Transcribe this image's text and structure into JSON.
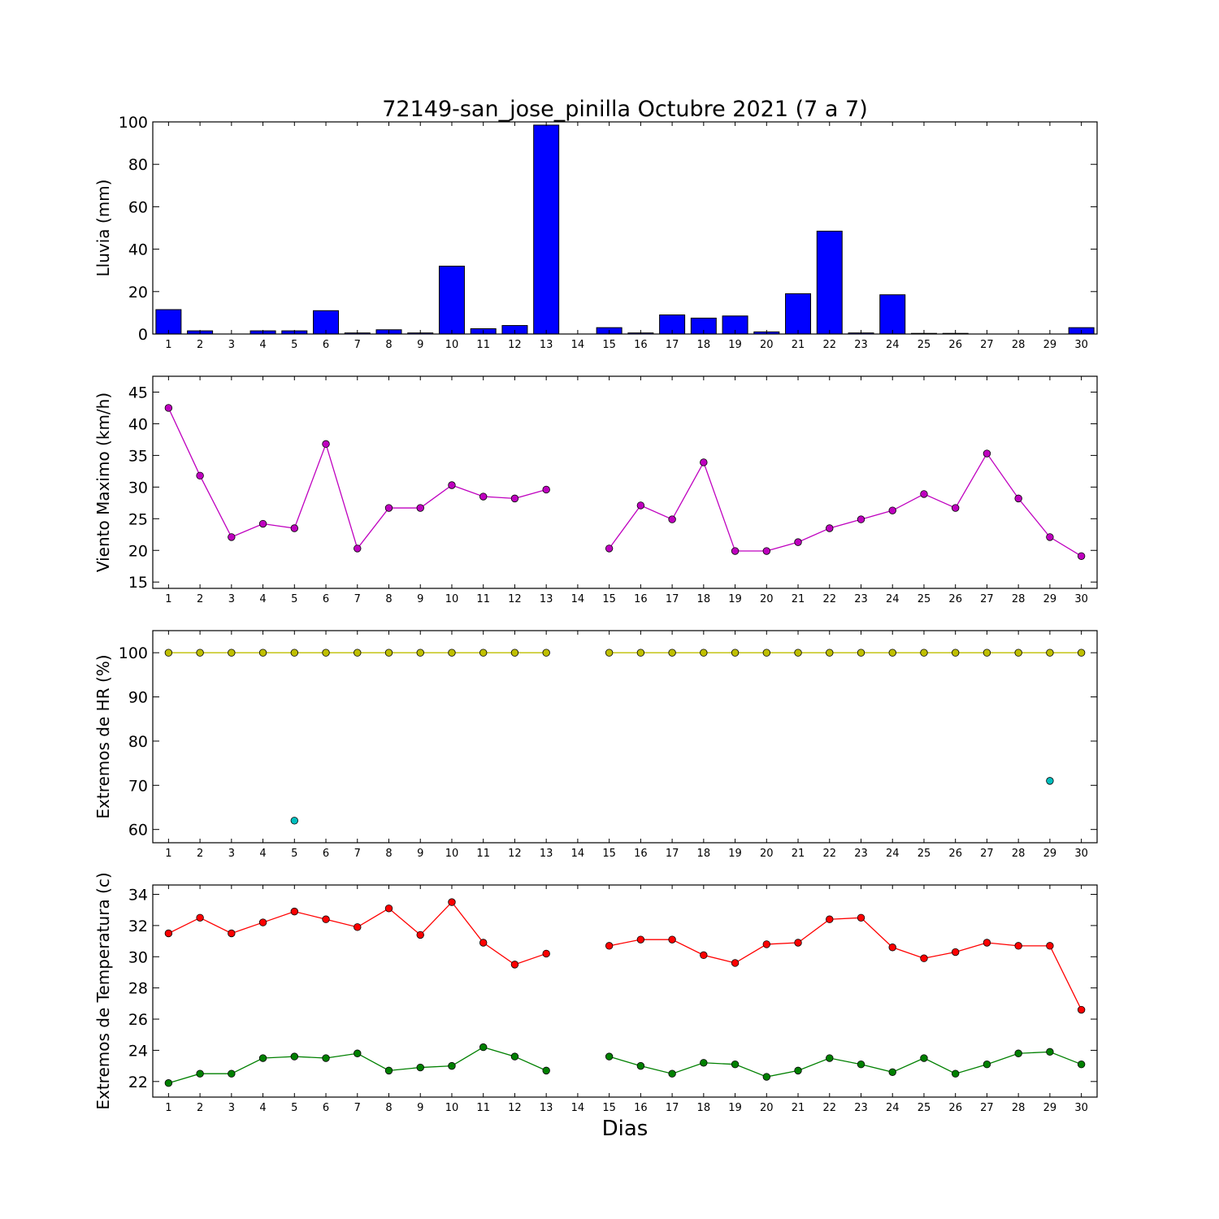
{
  "title": "72149-san_jose_pinilla Octubre 2021  (7 a 7)",
  "xlabel": "Dias",
  "chart_data": [
    {
      "type": "bar",
      "ylabel": "Lluvia (mm)",
      "ylim": [
        0,
        100
      ],
      "yticks": [
        0,
        20,
        40,
        60,
        80,
        100
      ],
      "x": [
        1,
        2,
        3,
        4,
        5,
        6,
        7,
        8,
        9,
        10,
        11,
        12,
        13,
        14,
        15,
        16,
        17,
        18,
        19,
        20,
        21,
        22,
        23,
        24,
        25,
        26,
        27,
        28,
        29,
        30
      ],
      "series": [
        {
          "color": "#0000ff",
          "values": [
            11.5,
            1.5,
            0,
            1.5,
            1.5,
            11,
            0.5,
            2,
            0.5,
            32,
            2.5,
            4,
            98.5,
            0,
            3,
            0.5,
            9,
            7.5,
            8.5,
            1,
            19,
            48.5,
            0.5,
            18.5,
            0.3,
            0.3,
            0,
            0,
            0,
            3
          ]
        }
      ]
    },
    {
      "type": "line",
      "ylabel": "Viento Maximo (km/h)",
      "ylim": [
        14,
        47.5
      ],
      "yticks": [
        15,
        20,
        25,
        30,
        35,
        40,
        45
      ],
      "x": [
        1,
        2,
        3,
        4,
        5,
        6,
        7,
        8,
        9,
        10,
        11,
        12,
        13,
        14,
        15,
        16,
        17,
        18,
        19,
        20,
        21,
        22,
        23,
        24,
        25,
        26,
        27,
        28,
        29,
        30
      ],
      "series": [
        {
          "color": "#bf00bf",
          "values": [
            42.5,
            31.8,
            22.1,
            24.2,
            23.5,
            36.8,
            20.3,
            26.7,
            26.7,
            30.3,
            28.5,
            28.2,
            29.6,
            null,
            20.3,
            27.1,
            24.9,
            33.9,
            19.9,
            19.9,
            21.3,
            23.5,
            24.9,
            26.3,
            28.9,
            26.7,
            35.3,
            28.2,
            22.1,
            19.1
          ]
        }
      ]
    },
    {
      "type": "line",
      "ylabel": "Extremos de HR (%)",
      "ylim": [
        57,
        105
      ],
      "yticks": [
        60,
        70,
        80,
        90,
        100
      ],
      "x": [
        1,
        2,
        3,
        4,
        5,
        6,
        7,
        8,
        9,
        10,
        11,
        12,
        13,
        14,
        15,
        16,
        17,
        18,
        19,
        20,
        21,
        22,
        23,
        24,
        25,
        26,
        27,
        28,
        29,
        30
      ],
      "series": [
        {
          "color": "#bfbf00",
          "values": [
            100,
            100,
            100,
            100,
            100,
            100,
            100,
            100,
            100,
            100,
            100,
            100,
            100,
            null,
            100,
            100,
            100,
            100,
            100,
            100,
            100,
            100,
            100,
            100,
            100,
            100,
            100,
            100,
            100,
            100
          ]
        },
        {
          "color": "#00bfbf",
          "markers_only": true,
          "values": [
            null,
            null,
            null,
            null,
            62,
            null,
            null,
            null,
            null,
            null,
            null,
            null,
            null,
            null,
            null,
            null,
            null,
            null,
            null,
            null,
            null,
            null,
            null,
            null,
            null,
            null,
            null,
            null,
            71,
            null
          ]
        }
      ]
    },
    {
      "type": "line",
      "ylabel": "Extremos de Temperatura (c)",
      "ylim": [
        21,
        34.6
      ],
      "yticks": [
        22,
        24,
        26,
        28,
        30,
        32,
        34
      ],
      "x": [
        1,
        2,
        3,
        4,
        5,
        6,
        7,
        8,
        9,
        10,
        11,
        12,
        13,
        14,
        15,
        16,
        17,
        18,
        19,
        20,
        21,
        22,
        23,
        24,
        25,
        26,
        27,
        28,
        29,
        30
      ],
      "series": [
        {
          "color": "#ff0000",
          "values": [
            31.5,
            32.5,
            31.5,
            32.2,
            32.9,
            32.4,
            31.9,
            33.1,
            31.4,
            33.5,
            30.9,
            29.5,
            30.2,
            null,
            30.7,
            31.1,
            31.1,
            30.1,
            29.6,
            30.8,
            30.9,
            32.4,
            32.5,
            30.6,
            29.9,
            30.3,
            30.9,
            30.7,
            30.7,
            26.6
          ]
        },
        {
          "color": "#008000",
          "values": [
            21.9,
            22.5,
            22.5,
            23.5,
            23.6,
            23.5,
            23.8,
            22.7,
            22.9,
            23.0,
            24.2,
            23.6,
            22.7,
            null,
            23.6,
            23.0,
            22.5,
            23.2,
            23.1,
            22.3,
            22.7,
            23.5,
            23.1,
            22.6,
            23.5,
            22.5,
            23.1,
            23.8,
            23.9,
            23.1
          ]
        }
      ]
    }
  ]
}
